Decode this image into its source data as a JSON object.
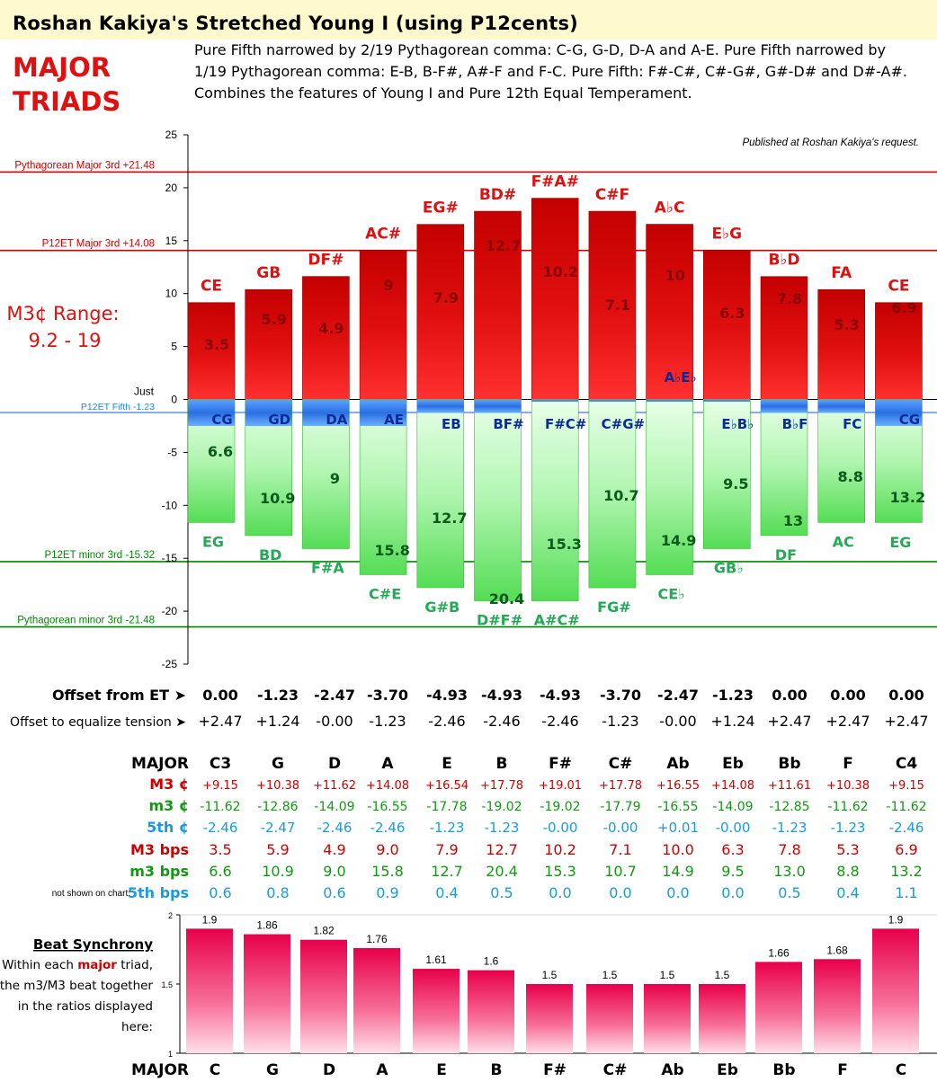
{
  "header": {
    "title": "Roshan Kakiya's Stretched Young I (using P12cents)",
    "label_line1": "MAJOR",
    "label_line2": "TRIADS",
    "description": "Pure Fifth narrowed by 2/19 Pythagorean comma: C-G, G-D, D-A and A-E. Pure Fifth narrowed by 1/19 Pythagorean comma: E-B, B-F#, A#-F and F-C. Pure Fifth: F#-C#, C#-G#, G#-D# and D#-A#. Combines the features of Young I and Pure 12th Equal Temperament.",
    "published_note": "Published at Roshan Kakiya's request."
  },
  "range_label": {
    "line1": "M3¢ Range:",
    "line2": "9.2 - 19"
  },
  "colors": {
    "major_bar": "#dd0000",
    "minor_bar": "#33cc33",
    "fifth_bar": "#2a6fe0",
    "sync_bar": "#e8004a",
    "red_text": "#e01010",
    "green_text": "#22aa55",
    "blue_text": "#0a2a9a",
    "cyan_text": "#1a9ae0"
  },
  "chart_data": [
    {
      "type": "bar",
      "title": "",
      "ylim": [
        -25,
        25
      ],
      "yticks": [
        25,
        20,
        15,
        10,
        5,
        0,
        -5,
        -10,
        -15,
        -20,
        -25
      ],
      "zero_label": "Just",
      "reference_lines": [
        {
          "label": "Pythagorean Major 3rd +21.48",
          "value": 21.48,
          "color": "#cc0000"
        },
        {
          "label": "P12ET Major 3rd +14.08",
          "value": 14.08,
          "color": "#cc0000"
        },
        {
          "label": "P12ET Fifth -1.23",
          "value": -1.23,
          "color": "#3a7fd0"
        },
        {
          "label": "P12ET minor 3rd -15.32",
          "value": -15.32,
          "color": "#008800"
        },
        {
          "label": "Pythagorean minor 3rd -21.48",
          "value": -21.48,
          "color": "#008800"
        }
      ],
      "major_labels": [
        "CE",
        "GB",
        "DF#",
        "AC#",
        "EG#",
        "BD#",
        "F#A#",
        "C#F",
        "A♭C",
        "E♭G",
        "B♭D",
        "FA",
        "CE"
      ],
      "fifth_labels": [
        "CG",
        "GD",
        "DA",
        "AE",
        "EB",
        "BF#",
        "F#C#",
        "C#G#",
        "A♭E♭",
        "E♭B♭",
        "B♭F",
        "FC",
        "CG"
      ],
      "minor_labels": [
        "EG",
        "BD",
        "F#A",
        "C#E",
        "G#B",
        "D#F#",
        "A#C#",
        "FG#",
        "CE♭",
        "GB♭",
        "DF",
        "AC",
        "EG"
      ],
      "series": [
        {
          "name": "M3 ¢",
          "values": [
            9.15,
            10.38,
            11.62,
            14.08,
            16.54,
            17.78,
            19.01,
            17.78,
            16.55,
            14.08,
            11.61,
            10.38,
            9.15
          ]
        },
        {
          "name": "m3 ¢",
          "values": [
            -11.62,
            -12.86,
            -14.09,
            -16.55,
            -17.78,
            -19.02,
            -19.02,
            -17.79,
            -16.55,
            -14.09,
            -12.85,
            -11.62,
            -11.62
          ]
        },
        {
          "name": "5th ¢",
          "values": [
            -2.46,
            -2.47,
            -2.46,
            -2.46,
            -1.23,
            -1.23,
            -0.0,
            -0.0,
            0.01,
            -0.0,
            -1.23,
            -1.23,
            -2.46
          ]
        },
        {
          "name": "M3 bps",
          "values": [
            3.5,
            5.9,
            4.9,
            9.0,
            7.9,
            12.7,
            10.2,
            7.1,
            10.0,
            6.3,
            7.8,
            5.3,
            6.9
          ]
        },
        {
          "name": "m3 bps",
          "values": [
            6.6,
            10.9,
            9.0,
            15.8,
            12.7,
            20.4,
            15.3,
            10.7,
            14.9,
            9.5,
            13.0,
            8.8,
            13.2
          ]
        }
      ]
    },
    {
      "type": "bar",
      "title": "Beat Synchrony",
      "categories": [
        "C",
        "G",
        "D",
        "A",
        "E",
        "B",
        "F#",
        "C#",
        "Ab",
        "Eb",
        "Bb",
        "F",
        "C"
      ],
      "values": [
        1.9,
        1.86,
        1.82,
        1.76,
        1.61,
        1.6,
        1.5,
        1.5,
        1.5,
        1.5,
        1.66,
        1.68,
        1.9
      ],
      "ylim": [
        1.0,
        2.0
      ],
      "yticks": [
        2.0,
        1.5,
        1.0
      ]
    }
  ],
  "offset_rows": [
    {
      "label": "Offset from ET ➤",
      "values": [
        "0.00",
        "-1.23",
        "-2.47",
        "-3.70",
        "-4.93",
        "-4.93",
        "-4.93",
        "-3.70",
        "-2.47",
        "-1.23",
        "0.00",
        "0.00",
        "0.00"
      ]
    },
    {
      "label": "Offset to equalize tension ➤",
      "values": [
        "+2.47",
        "+1.24",
        "-0.00",
        "-1.23",
        "-2.46",
        "-2.46",
        "-2.46",
        "-1.23",
        "-0.00",
        "+1.24",
        "+2.47",
        "+2.47",
        "+2.47"
      ]
    }
  ],
  "table": {
    "header_label": "MAJOR",
    "columns": [
      "C3",
      "G",
      "D",
      "A",
      "E",
      "B",
      "F#",
      "C#",
      "Ab",
      "Eb",
      "Bb",
      "F",
      "C4"
    ],
    "not_shown_note": "not shown on chart:",
    "rows": [
      {
        "label": "M3 ¢",
        "values": [
          "+9.15",
          "+10.38",
          "+11.62",
          "+14.08",
          "+16.54",
          "+17.78",
          "+19.01",
          "+17.78",
          "+16.55",
          "+14.08",
          "+11.61",
          "+10.38",
          "+9.15"
        ]
      },
      {
        "label": "m3 ¢",
        "values": [
          "-11.62",
          "-12.86",
          "-14.09",
          "-16.55",
          "-17.78",
          "-19.02",
          "-19.02",
          "-17.79",
          "-16.55",
          "-14.09",
          "-12.85",
          "-11.62",
          "-11.62"
        ]
      },
      {
        "label": "5th ¢",
        "values": [
          "-2.46",
          "-2.47",
          "-2.46",
          "-2.46",
          "-1.23",
          "-1.23",
          "-0.00",
          "-0.00",
          "+0.01",
          "-0.00",
          "-1.23",
          "-1.23",
          "-2.46"
        ]
      },
      {
        "label": "M3 bps",
        "values": [
          "3.5",
          "5.9",
          "4.9",
          "9.0",
          "7.9",
          "12.7",
          "10.2",
          "7.1",
          "10.0",
          "6.3",
          "7.8",
          "5.3",
          "6.9"
        ]
      },
      {
        "label": "m3 bps",
        "values": [
          "6.6",
          "10.9",
          "9.0",
          "15.8",
          "12.7",
          "20.4",
          "15.3",
          "10.7",
          "14.9",
          "9.5",
          "13.0",
          "8.8",
          "13.2"
        ]
      },
      {
        "label": "5th bps",
        "values": [
          "0.6",
          "0.8",
          "0.6",
          "0.9",
          "0.4",
          "0.5",
          "0.0",
          "0.0",
          "0.0",
          "0.0",
          "0.5",
          "0.4",
          "1.1"
        ]
      }
    ]
  },
  "beat_sync": {
    "heading": "Beat Synchrony",
    "text_pre": "Within each ",
    "text_em": "major",
    "text_post": " triad,",
    "line2": "the m3/M3 beat together",
    "line3": "in the ratios displayed",
    "line4": "here:",
    "axis_label": "MAJOR"
  }
}
